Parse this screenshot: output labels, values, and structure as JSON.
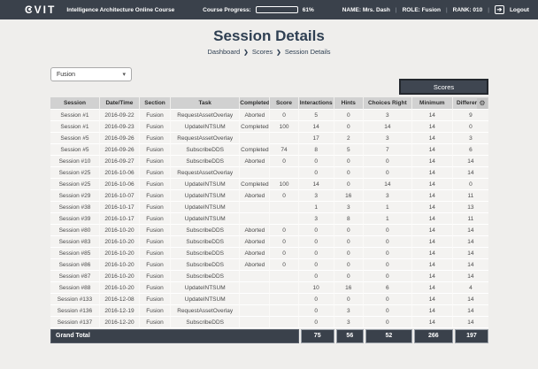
{
  "topbar": {
    "logo": "CVIT",
    "app_title": "Intelligence Architecture Online Course",
    "progress_label": "Course Progress:",
    "progress_percent": 61,
    "progress_text": "61%",
    "name_label": "NAME: Mrs. Dash",
    "role_label": "ROLE: Fusion",
    "rank_label": "RANK: 010",
    "separator": "|",
    "logout_icon": "➔",
    "logout_label": "Logout"
  },
  "page": {
    "title": "Session Details",
    "breadcrumb": [
      "Dashboard",
      "Scores",
      "Session Details"
    ],
    "breadcrumb_separator": "❯",
    "filter_value": "Fusion",
    "filter_caret": "▾",
    "scores_button": "Scores",
    "options_icon": "⚙"
  },
  "table": {
    "columns": [
      "Session",
      "Date/Time",
      "Section",
      "Task",
      "Completed",
      "Score",
      "Interactions",
      "Hints",
      "Choices Right",
      "Minimum",
      "Difference"
    ],
    "rows": [
      [
        "Session #1",
        "2016-09-22",
        "Fusion",
        "RequestAssetOverlay",
        "Aborted",
        "0",
        "5",
        "0",
        "3",
        "14",
        "9"
      ],
      [
        "Session #1",
        "2016-09-23",
        "Fusion",
        "UpdateINTSUM",
        "Completed",
        "100",
        "14",
        "0",
        "14",
        "14",
        "0"
      ],
      [
        "Session #5",
        "2016-09-26",
        "Fusion",
        "RequestAssetOverlay",
        "",
        "",
        "17",
        "2",
        "3",
        "14",
        "3"
      ],
      [
        "Session #5",
        "2016-09-26",
        "Fusion",
        "SubscribeDDS",
        "Completed",
        "74",
        "8",
        "5",
        "7",
        "14",
        "6"
      ],
      [
        "Session #10",
        "2016-09-27",
        "Fusion",
        "SubscribeDDS",
        "Aborted",
        "0",
        "0",
        "0",
        "0",
        "14",
        "14"
      ],
      [
        "Session #25",
        "2016-10-06",
        "Fusion",
        "RequestAssetOverlay",
        "",
        "",
        "0",
        "0",
        "0",
        "14",
        "14"
      ],
      [
        "Session #25",
        "2016-10-06",
        "Fusion",
        "UpdateINTSUM",
        "Completed",
        "100",
        "14",
        "0",
        "14",
        "14",
        "0"
      ],
      [
        "Session #29",
        "2016-10-07",
        "Fusion",
        "UpdateINTSUM",
        "Aborted",
        "0",
        "3",
        "16",
        "3",
        "14",
        "11"
      ],
      [
        "Session #38",
        "2016-10-17",
        "Fusion",
        "UpdateINTSUM",
        "",
        "",
        "1",
        "3",
        "1",
        "14",
        "13"
      ],
      [
        "Session #39",
        "2016-10-17",
        "Fusion",
        "UpdateINTSUM",
        "",
        "",
        "3",
        "8",
        "1",
        "14",
        "11"
      ],
      [
        "Session #80",
        "2016-10-20",
        "Fusion",
        "SubscribeDDS",
        "Aborted",
        "0",
        "0",
        "0",
        "0",
        "14",
        "14"
      ],
      [
        "Session #83",
        "2016-10-20",
        "Fusion",
        "SubscribeDDS",
        "Aborted",
        "0",
        "0",
        "0",
        "0",
        "14",
        "14"
      ],
      [
        "Session #85",
        "2016-10-20",
        "Fusion",
        "SubscribeDDS",
        "Aborted",
        "0",
        "0",
        "0",
        "0",
        "14",
        "14"
      ],
      [
        "Session #86",
        "2016-10-20",
        "Fusion",
        "SubscribeDDS",
        "Aborted",
        "0",
        "0",
        "0",
        "0",
        "14",
        "14"
      ],
      [
        "Session #87",
        "2016-10-20",
        "Fusion",
        "SubscribeDDS",
        "",
        "",
        "0",
        "0",
        "0",
        "14",
        "14"
      ],
      [
        "Session #88",
        "2016-10-20",
        "Fusion",
        "UpdateINTSUM",
        "",
        "",
        "10",
        "16",
        "6",
        "14",
        "4"
      ],
      [
        "Session #133",
        "2016-12-08",
        "Fusion",
        "UpdateINTSUM",
        "",
        "",
        "0",
        "0",
        "0",
        "14",
        "14"
      ],
      [
        "Session #136",
        "2016-12-19",
        "Fusion",
        "RequestAssetOverlay",
        "",
        "",
        "0",
        "3",
        "0",
        "14",
        "14"
      ],
      [
        "Session #137",
        "2016-12-20",
        "Fusion",
        "SubscribeDDS",
        "",
        "",
        "0",
        "3",
        "0",
        "14",
        "14"
      ]
    ],
    "grand_total": {
      "label": "Grand Total",
      "interactions": "75",
      "hints": "56",
      "choices_right": "52",
      "minimum": "266",
      "difference": "197"
    }
  },
  "colors": {
    "topbar_bg": "#3a414b",
    "page_bg": "#efeeec",
    "header_cell_bg": "#d1d1d1",
    "row_bg": "#f4f3f1",
    "grand_total_bg": "#3a414b",
    "title_text": "#2e3f52"
  }
}
